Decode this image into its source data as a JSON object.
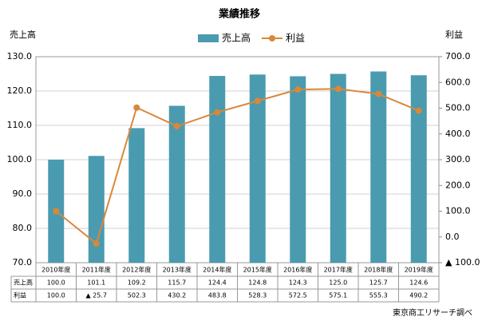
{
  "chart_data": {
    "type": "bar_line",
    "title": "業績推移",
    "y_label": "売上高",
    "y2_label": "利益",
    "source": "東京商工リサーチ調べ",
    "categories": [
      "2010年度",
      "2011年度",
      "2012年度",
      "2013年度",
      "2014年度",
      "2015年度",
      "2016年度",
      "2017年度",
      "2018年度",
      "2019年度"
    ],
    "series": [
      {
        "name": "売上高",
        "type": "bar",
        "color": "#4a9bb0",
        "values": [
          100.0,
          101.1,
          109.2,
          115.7,
          124.4,
          124.8,
          124.3,
          125.0,
          125.7,
          124.6
        ],
        "value_labels": [
          "100.0",
          "101.1",
          "109.2",
          "115.7",
          "124.4",
          "124.8",
          "124.3",
          "125.0",
          "125.7",
          "124.6"
        ]
      },
      {
        "name": "利益",
        "type": "line",
        "axis": "y2",
        "color": "#d9873a",
        "values": [
          100.0,
          -25.7,
          502.3,
          430.2,
          483.8,
          528.3,
          572.5,
          575.1,
          555.3,
          490.2
        ],
        "value_labels": [
          "100.0",
          "▲ 25.7",
          "502.3",
          "430.2",
          "483.8",
          "528.3",
          "572.5",
          "575.1",
          "555.3",
          "490.2"
        ]
      }
    ],
    "ylim": [
      70,
      130
    ],
    "yticks": [
      {
        "value": 70,
        "label": "70.0"
      },
      {
        "value": 80,
        "label": "80.0"
      },
      {
        "value": 90,
        "label": "90.0"
      },
      {
        "value": 100,
        "label": "100.0"
      },
      {
        "value": 110,
        "label": "110.0"
      },
      {
        "value": 120,
        "label": "120.0"
      },
      {
        "value": 130,
        "label": "130.0"
      }
    ],
    "y2lim": [
      -100,
      700
    ],
    "y2ticks": [
      {
        "value": -100,
        "label": "▲ 100.0"
      },
      {
        "value": 0,
        "label": "0.0"
      },
      {
        "value": 100,
        "label": "100.0"
      },
      {
        "value": 200,
        "label": "200.0"
      },
      {
        "value": 300,
        "label": "300.0"
      },
      {
        "value": 400,
        "label": "400.0"
      },
      {
        "value": 500,
        "label": "500.0"
      },
      {
        "value": 600,
        "label": "600.0"
      },
      {
        "value": 700,
        "label": "700.0"
      }
    ],
    "grid": true,
    "legend": "top"
  }
}
